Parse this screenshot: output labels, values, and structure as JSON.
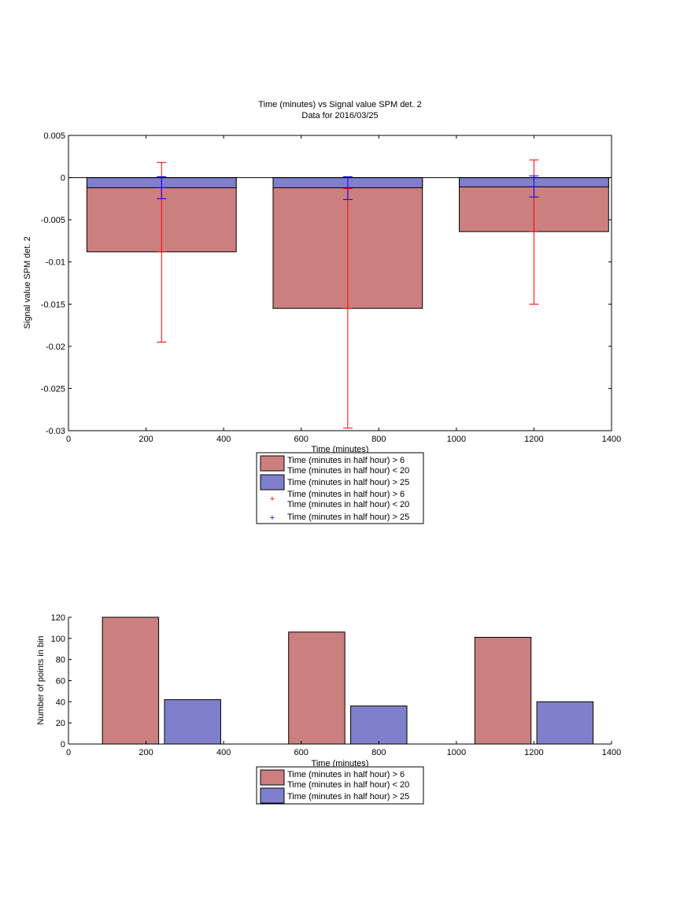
{
  "colors": {
    "red_bar": "#cc7f7f",
    "blue_bar": "#7f7fcc",
    "red_err": "#ff0000",
    "blue_err": "#0000ff"
  },
  "chart_data": [
    {
      "type": "bar",
      "title": "Time (minutes) vs Signal value SPM det. 2",
      "subtitle": "Data for 2016/03/25",
      "xlabel": "Time (minutes)",
      "ylabel": "Signal value SPM det. 2",
      "xlim": [
        0,
        1400
      ],
      "ylim": [
        -0.03,
        0.005
      ],
      "xticks": [
        "0",
        "200",
        "400",
        "600",
        "800",
        "1000",
        "1200",
        "1400"
      ],
      "yticks": [
        "0.005",
        "0",
        "-0.005",
        "-0.01",
        "-0.015",
        "-0.02",
        "-0.025",
        "-0.03"
      ],
      "bar_width": 385,
      "x": [
        240,
        720,
        1200
      ],
      "series": [
        {
          "name": "Time (minutes in half hour) > 6\nTime (minutes in half hour) < 20",
          "values": [
            -0.0088,
            -0.0155,
            -0.0064
          ],
          "err_low": [
            -0.0195,
            -0.0297,
            -0.015
          ],
          "err_high": [
            0.0018,
            -0.0013,
            0.0021
          ]
        },
        {
          "name": "Time (minutes in half hour) > 25",
          "values": [
            -0.0012,
            -0.0012,
            -0.0011
          ],
          "err_low": [
            -0.0025,
            -0.0026,
            -0.0023
          ],
          "err_high": [
            0.0001,
            0.0001,
            0.0002
          ]
        }
      ],
      "legend": [
        {
          "kind": "bar-red",
          "lines": [
            "Time (minutes in half hour) > 6",
            "Time (minutes in half hour) < 20"
          ]
        },
        {
          "kind": "bar-blue",
          "lines": [
            "Time (minutes in half hour) > 25"
          ]
        },
        {
          "kind": "err-red",
          "lines": [
            "Time (minutes in half hour) > 6",
            "Time (minutes in half hour) < 20"
          ]
        },
        {
          "kind": "err-blue",
          "lines": [
            "Time (minutes in half hour) > 25"
          ]
        }
      ]
    },
    {
      "type": "bar",
      "xlabel": "Time (minutes)",
      "ylabel": "Number of points in bin",
      "xlim": [
        0,
        1400
      ],
      "ylim": [
        0,
        120
      ],
      "xticks": [
        "0",
        "200",
        "400",
        "600",
        "800",
        "1000",
        "1200",
        "1400"
      ],
      "yticks": [
        "120",
        "100",
        "80",
        "60",
        "40",
        "20",
        "0"
      ],
      "bar_width": 145,
      "series": [
        {
          "name": "Time (minutes in half hour) > 6\nTime (minutes in half hour) < 20",
          "x": [
            160,
            640,
            1120
          ],
          "values": [
            120,
            106,
            101
          ]
        },
        {
          "name": "Time (minutes in half hour) > 25",
          "x": [
            320,
            800,
            1280
          ],
          "values": [
            42,
            36,
            40
          ]
        }
      ],
      "legend": [
        {
          "kind": "bar-red",
          "lines": [
            "Time (minutes in half hour) > 6",
            "Time (minutes in half hour) < 20"
          ]
        },
        {
          "kind": "bar-blue",
          "lines": [
            "Time (minutes in half hour) > 25"
          ]
        }
      ]
    }
  ]
}
